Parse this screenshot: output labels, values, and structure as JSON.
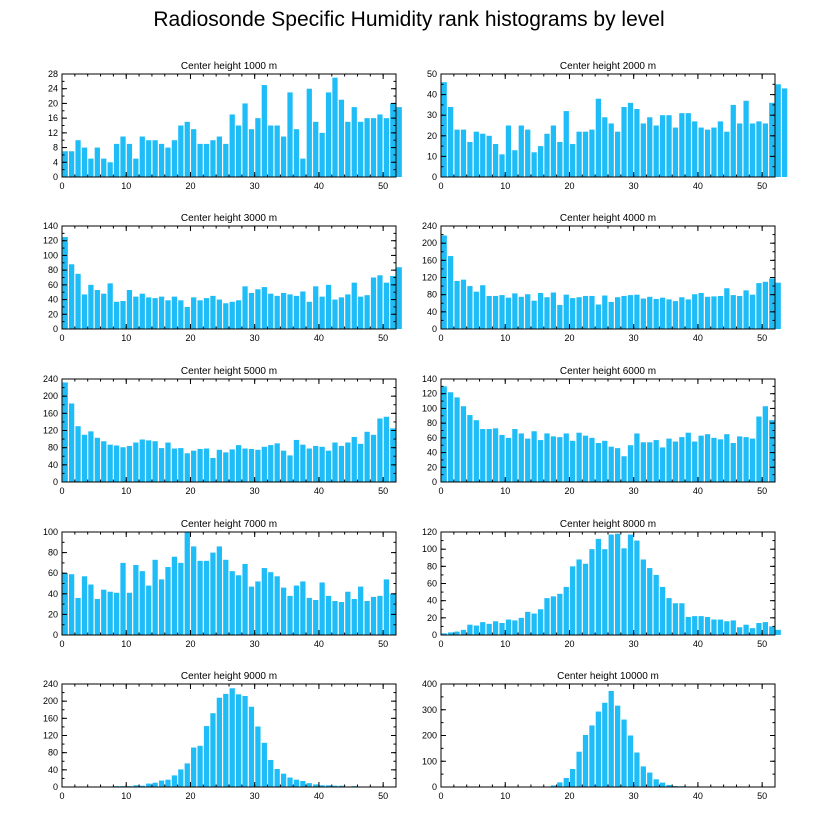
{
  "page": {
    "title": "Radiosonde Specific Humidity rank histograms by level"
  },
  "style": {
    "bar_color": "#1fbdf7",
    "axis_color": "#000000"
  },
  "chart_data": [
    {
      "type": "bar",
      "title": "Center height 1000 m",
      "x_ticks": [
        0,
        10,
        20,
        30,
        40,
        50
      ],
      "xlim": [
        0,
        52
      ],
      "ylim": [
        0,
        28
      ],
      "y_ticks": [
        0,
        4,
        8,
        12,
        16,
        20,
        24,
        28
      ],
      "values": [
        7,
        7,
        10,
        8,
        5,
        8,
        5,
        4,
        9,
        11,
        9,
        5,
        11,
        10,
        10,
        9,
        8,
        10,
        14,
        15,
        13,
        9,
        9,
        10,
        11,
        9,
        17,
        14,
        20,
        13,
        16,
        25,
        14,
        14,
        11,
        23,
        13,
        5,
        24,
        15,
        12,
        23,
        27,
        21,
        15,
        19,
        15,
        16,
        16,
        17,
        16,
        20,
        19
      ]
    },
    {
      "type": "bar",
      "title": "Center height 2000 m",
      "x_ticks": [
        0,
        10,
        20,
        30,
        40,
        50
      ],
      "xlim": [
        0,
        52
      ],
      "ylim": [
        0,
        50
      ],
      "y_ticks": [
        0,
        10,
        20,
        30,
        40,
        50
      ],
      "values": [
        46,
        34,
        23,
        23,
        17,
        22,
        21,
        20,
        16,
        11,
        25,
        13,
        25,
        23,
        12,
        15,
        21,
        25,
        17,
        32,
        16,
        22,
        22,
        23,
        38,
        29,
        26,
        22,
        34,
        36,
        33,
        26,
        29,
        25,
        30,
        30,
        24,
        31,
        31,
        27,
        24,
        23,
        24,
        27,
        22,
        35,
        26,
        37,
        26,
        27,
        26,
        36,
        45,
        43
      ]
    },
    {
      "type": "bar",
      "title": "Center height 3000 m",
      "x_ticks": [
        0,
        10,
        20,
        30,
        40,
        50
      ],
      "xlim": [
        0,
        52
      ],
      "ylim": [
        0,
        140
      ],
      "y_ticks": [
        0,
        20,
        40,
        60,
        80,
        100,
        120,
        140
      ],
      "values": [
        125,
        88,
        75,
        47,
        60,
        53,
        48,
        62,
        37,
        38,
        53,
        44,
        48,
        43,
        42,
        44,
        39,
        44,
        39,
        30,
        43,
        39,
        42,
        45,
        40,
        35,
        37,
        39,
        58,
        49,
        54,
        57,
        48,
        45,
        49,
        47,
        45,
        51,
        37,
        58,
        44,
        60,
        40,
        43,
        47,
        63,
        44,
        46,
        70,
        73,
        63,
        72,
        84
      ]
    },
    {
      "type": "bar",
      "title": "Center height 4000 m",
      "x_ticks": [
        0,
        10,
        20,
        30,
        40,
        50
      ],
      "xlim": [
        0,
        52
      ],
      "ylim": [
        0,
        240
      ],
      "y_ticks": [
        0,
        40,
        80,
        120,
        160,
        200,
        240
      ],
      "values": [
        218,
        170,
        112,
        115,
        100,
        87,
        102,
        77,
        77,
        79,
        73,
        83,
        75,
        81,
        66,
        84,
        74,
        85,
        56,
        80,
        72,
        74,
        77,
        77,
        57,
        78,
        63,
        74,
        77,
        79,
        80,
        71,
        75,
        70,
        73,
        69,
        65,
        74,
        69,
        81,
        84,
        75,
        76,
        77,
        95,
        79,
        77,
        90,
        80,
        107,
        110,
        118,
        108
      ]
    },
    {
      "type": "bar",
      "title": "Center height 5000 m",
      "x_ticks": [
        0,
        10,
        20,
        30,
        40,
        50
      ],
      "xlim": [
        0,
        52
      ],
      "ylim": [
        0,
        240
      ],
      "y_ticks": [
        0,
        40,
        80,
        120,
        160,
        200,
        240
      ],
      "values": [
        232,
        183,
        130,
        110,
        118,
        103,
        95,
        87,
        85,
        81,
        84,
        92,
        99,
        97,
        95,
        79,
        92,
        78,
        79,
        67,
        73,
        77,
        78,
        56,
        75,
        69,
        76,
        86,
        78,
        77,
        75,
        82,
        86,
        90,
        73,
        62,
        98,
        87,
        78,
        84,
        82,
        73,
        92,
        84,
        92,
        105,
        89,
        117,
        110,
        148,
        152,
        125
      ]
    },
    {
      "type": "bar",
      "title": "Center height 6000 m",
      "x_ticks": [
        0,
        10,
        20,
        30,
        40,
        50
      ],
      "xlim": [
        0,
        52
      ],
      "ylim": [
        0,
        140
      ],
      "y_ticks": [
        0,
        20,
        40,
        60,
        80,
        100,
        120,
        140
      ],
      "values": [
        130,
        122,
        115,
        103,
        91,
        84,
        72,
        72,
        73,
        64,
        60,
        72,
        66,
        59,
        69,
        57,
        66,
        62,
        61,
        66,
        56,
        67,
        63,
        60,
        53,
        56,
        48,
        46,
        35,
        50,
        66,
        54,
        54,
        57,
        47,
        59,
        55,
        61,
        67,
        55,
        63,
        65,
        60,
        58,
        65,
        53,
        62,
        61,
        59,
        89,
        103,
        84
      ]
    },
    {
      "type": "bar",
      "title": "Center height 7000 m",
      "x_ticks": [
        0,
        10,
        20,
        30,
        40,
        50
      ],
      "xlim": [
        0,
        52
      ],
      "ylim": [
        0,
        100
      ],
      "y_ticks": [
        0,
        20,
        40,
        60,
        80,
        100
      ],
      "values": [
        60,
        59,
        36,
        57,
        49,
        35,
        44,
        42,
        41,
        70,
        41,
        68,
        62,
        48,
        73,
        54,
        66,
        76,
        70,
        100,
        86,
        72,
        72,
        80,
        86,
        73,
        62,
        58,
        69,
        47,
        52,
        65,
        61,
        57,
        46,
        38,
        48,
        52,
        36,
        34,
        51,
        38,
        33,
        32,
        42,
        35,
        47,
        33,
        37,
        38,
        54,
        40
      ]
    },
    {
      "type": "bar",
      "title": "Center height 8000 m",
      "x_ticks": [
        0,
        10,
        20,
        30,
        40,
        50
      ],
      "xlim": [
        0,
        52
      ],
      "ylim": [
        0,
        120
      ],
      "y_ticks": [
        0,
        20,
        40,
        60,
        80,
        100,
        120
      ],
      "values": [
        2,
        3,
        4,
        6,
        12,
        11,
        15,
        13,
        16,
        14,
        18,
        17,
        20,
        27,
        25,
        30,
        43,
        45,
        48,
        56,
        80,
        88,
        83,
        100,
        112,
        100,
        117,
        118,
        101,
        117,
        110,
        88,
        78,
        70,
        56,
        43,
        37,
        37,
        21,
        22,
        22,
        21,
        18,
        18,
        16,
        17,
        9,
        12,
        8,
        14,
        15,
        10,
        6
      ]
    },
    {
      "type": "bar",
      "title": "Center height 9000 m",
      "x_ticks": [
        0,
        10,
        20,
        30,
        40,
        50
      ],
      "xlim": [
        0,
        52
      ],
      "ylim": [
        0,
        240
      ],
      "y_ticks": [
        0,
        40,
        80,
        120,
        160,
        200,
        240
      ],
      "values": [
        0,
        0,
        0,
        0,
        0,
        1,
        0,
        1,
        2,
        2,
        2,
        4,
        3,
        8,
        10,
        15,
        17,
        27,
        41,
        55,
        92,
        96,
        142,
        172,
        208,
        217,
        230,
        216,
        212,
        187,
        141,
        103,
        63,
        42,
        31,
        22,
        17,
        14,
        9,
        6,
        4,
        4,
        3,
        3,
        1,
        2,
        1,
        1,
        0,
        0,
        0,
        0,
        0
      ]
    },
    {
      "type": "bar",
      "title": "Center height 10000 m",
      "x_ticks": [
        0,
        10,
        20,
        30,
        40,
        50
      ],
      "xlim": [
        0,
        52
      ],
      "ylim": [
        0,
        400
      ],
      "y_ticks": [
        0,
        100,
        200,
        300,
        400
      ],
      "values": [
        0,
        0,
        0,
        0,
        0,
        0,
        0,
        0,
        0,
        0,
        0,
        0,
        0,
        0,
        0,
        1,
        2,
        6,
        18,
        35,
        70,
        137,
        202,
        239,
        293,
        327,
        373,
        316,
        262,
        200,
        134,
        80,
        56,
        30,
        17,
        8,
        4,
        3,
        2,
        2,
        1,
        1,
        1,
        0,
        0,
        0,
        0,
        0,
        0,
        0,
        0,
        0,
        0
      ]
    }
  ]
}
